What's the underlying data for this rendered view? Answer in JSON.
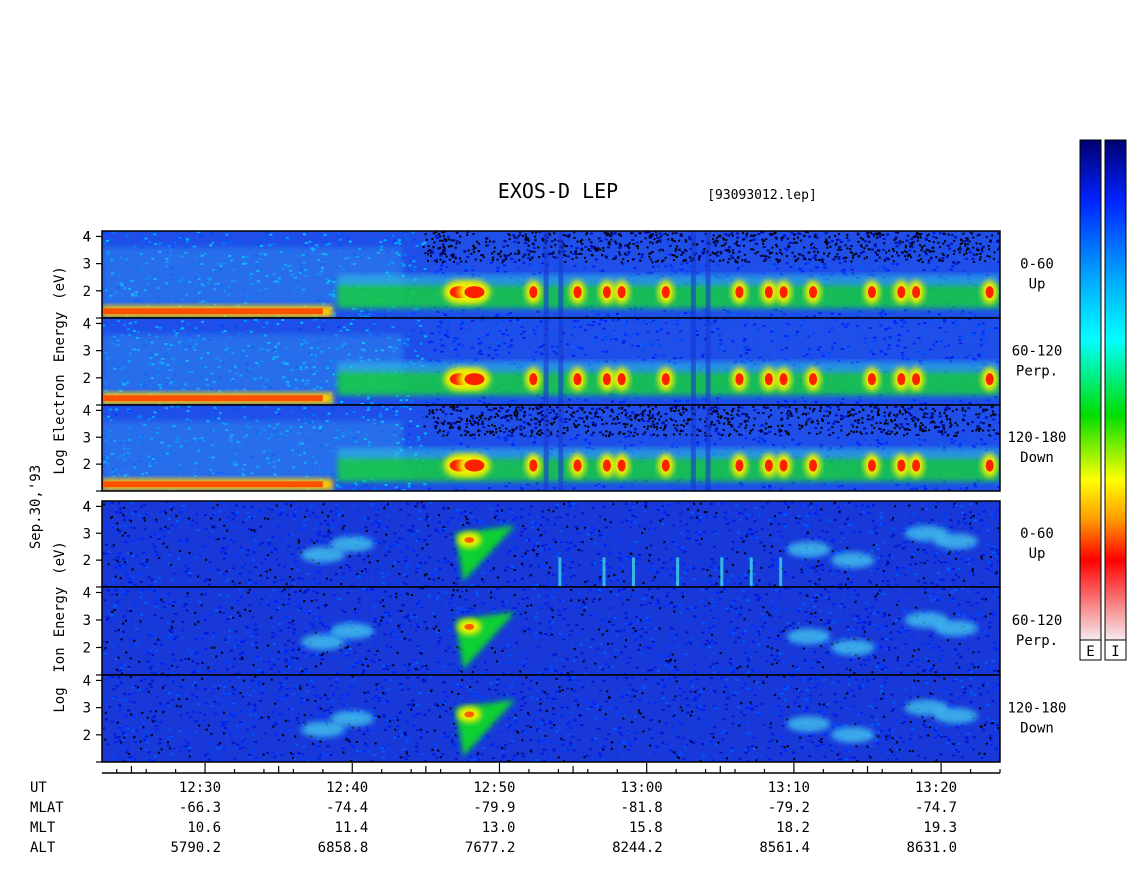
{
  "header": {
    "title": "EXOS-D LEP",
    "file_label": "[93093012.lep]"
  },
  "left_labels": {
    "electron_axis": [
      "Log",
      "Electron",
      "Energy",
      "(eV)"
    ],
    "ion_axis": [
      "Log",
      "Ion",
      "Energy",
      "(eV)"
    ],
    "date": "Sep.30,'93"
  },
  "colorbars": [
    {
      "name": "E",
      "stops": [
        "#f4ecef",
        "#ff0000",
        "#ff9900",
        "#ffff00",
        "#00dd00",
        "#00ffff",
        "#0055ff",
        "#000070"
      ]
    },
    {
      "name": "I",
      "stops": [
        "#f4ecef",
        "#ff0000",
        "#ff9900",
        "#ffff00",
        "#00dd00",
        "#00ffff",
        "#0055ff",
        "#000070"
      ]
    }
  ],
  "chart_data": {
    "type": "heatmap",
    "x_axis": {
      "quantity": "UT",
      "range": [
        "12:23",
        "13:24"
      ],
      "major_ticks": [
        "12:30",
        "12:40",
        "12:50",
        "13:00",
        "13:10",
        "13:20"
      ]
    },
    "y_axis": {
      "scale": "log10",
      "unit": "eV",
      "ticks": [
        1,
        2,
        3,
        4
      ],
      "tick_labels": [
        "2",
        "3",
        "4"
      ],
      "range": [
        1,
        4.2
      ]
    },
    "panels": [
      {
        "species": "Electron",
        "pitch_angle": "0-60",
        "direction": "Up"
      },
      {
        "species": "Electron",
        "pitch_angle": "60-120",
        "direction": "Perp."
      },
      {
        "species": "Electron",
        "pitch_angle": "120-180",
        "direction": "Down"
      },
      {
        "species": "Ion",
        "pitch_angle": "0-60",
        "direction": "Up"
      },
      {
        "species": "Ion",
        "pitch_angle": "60-120",
        "direction": "Perp."
      },
      {
        "species": "Ion",
        "pitch_angle": "120-180",
        "direction": "Down"
      }
    ],
    "ephemeris": {
      "rows": [
        {
          "label": "UT",
          "values": [
            "12:30",
            "12:40",
            "12:50",
            "13:00",
            "13:10",
            "13:20"
          ]
        },
        {
          "label": "MLAT",
          "values": [
            "-66.3",
            "-74.4",
            "-79.9",
            "-81.8",
            "-79.2",
            "-74.7"
          ]
        },
        {
          "label": "MLT",
          "values": [
            "10.6",
            "11.4",
            "13.0",
            "15.8",
            "18.2",
            "19.3"
          ]
        },
        {
          "label": "ALT",
          "values": [
            "5790.2",
            "6858.8",
            "7677.2",
            "8244.2",
            "8561.4",
            "8631.0"
          ]
        }
      ]
    }
  }
}
